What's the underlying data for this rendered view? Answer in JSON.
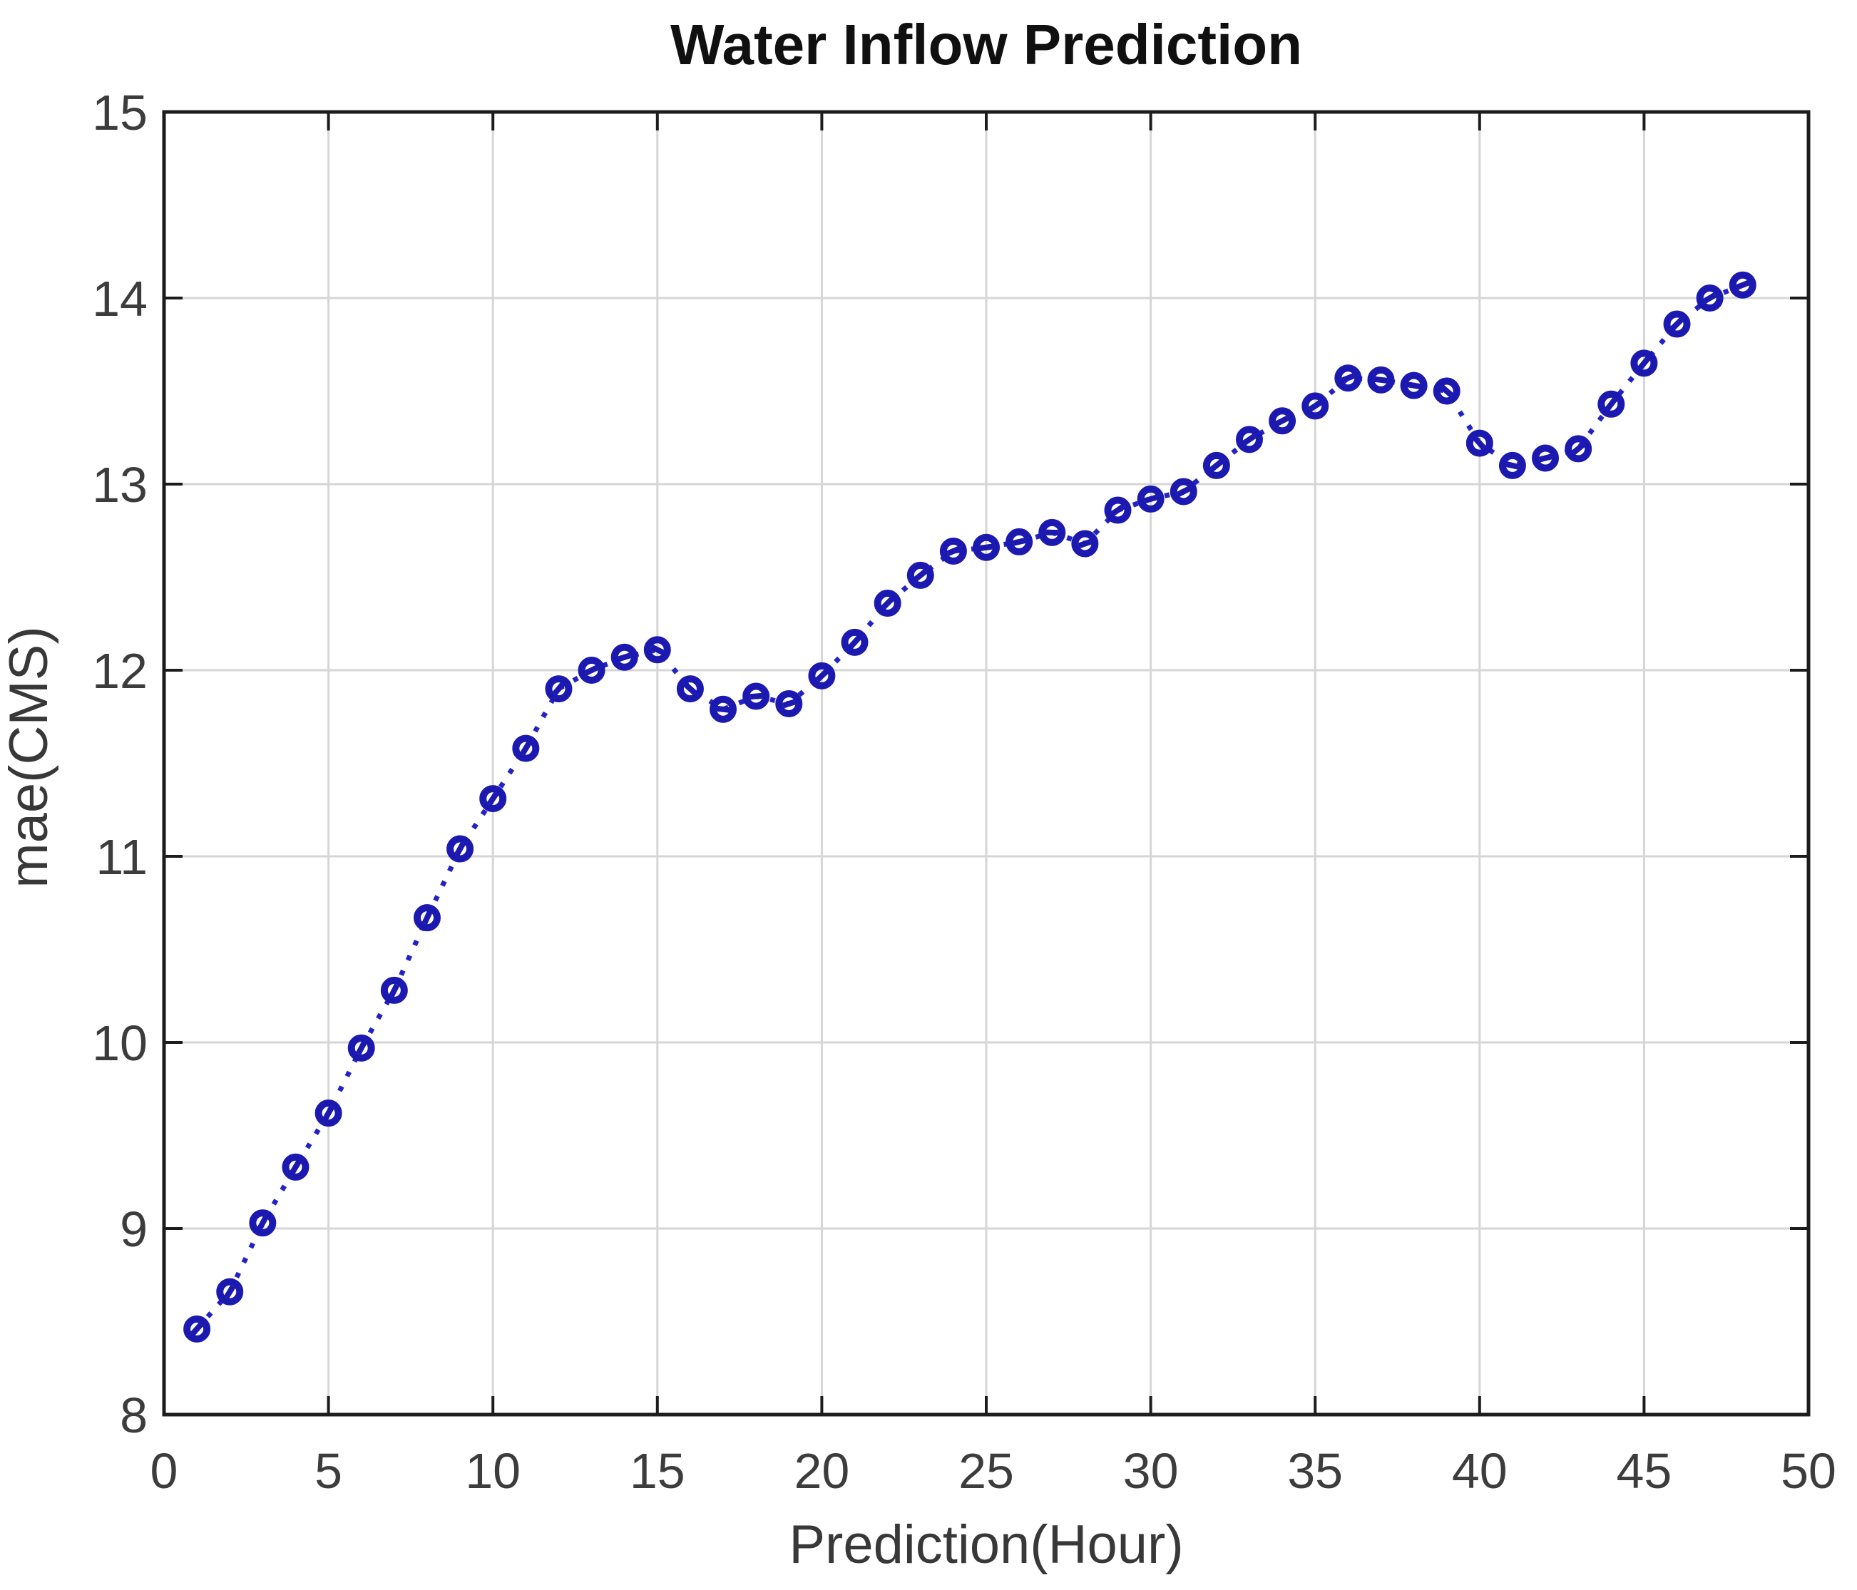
{
  "chart_data": {
    "type": "scatter",
    "title": "Water Inflow Prediction",
    "xlabel": "Prediction(Hour)",
    "ylabel": "mae(CMS)",
    "xlim": [
      0,
      50
    ],
    "ylim": [
      8,
      15
    ],
    "xticks": [
      0,
      5,
      10,
      15,
      20,
      25,
      30,
      35,
      40,
      45,
      50
    ],
    "yticks": [
      8,
      9,
      10,
      11,
      12,
      13,
      14,
      15
    ],
    "grid": true,
    "legend_position": "none",
    "marker": "open-circle",
    "line_style": "dotted",
    "series": [
      {
        "name": "mae",
        "x": [
          1,
          2,
          3,
          4,
          5,
          6,
          7,
          8,
          9,
          10,
          11,
          12,
          13,
          14,
          15,
          16,
          17,
          18,
          19,
          20,
          21,
          22,
          23,
          24,
          25,
          26,
          27,
          28,
          29,
          30,
          31,
          32,
          33,
          34,
          35,
          36,
          37,
          38,
          39,
          40,
          41,
          42,
          43,
          44,
          45,
          46,
          47,
          48
        ],
        "y": [
          8.46,
          8.66,
          9.03,
          9.33,
          9.62,
          9.97,
          10.28,
          10.67,
          11.04,
          11.31,
          11.58,
          11.9,
          12.0,
          12.07,
          12.11,
          11.9,
          11.79,
          11.86,
          11.82,
          11.97,
          12.15,
          12.36,
          12.51,
          12.64,
          12.66,
          12.69,
          12.74,
          12.68,
          12.86,
          12.92,
          12.96,
          13.1,
          13.24,
          13.34,
          13.42,
          13.57,
          13.56,
          13.53,
          13.5,
          13.22,
          13.1,
          13.14,
          13.19,
          13.43,
          13.65,
          13.86,
          14.0,
          14.07
        ]
      }
    ],
    "colors": {
      "marker": "#1b19b0",
      "line": "#2323c4",
      "grid": "#d6d6d6",
      "axis": "#1c1c1c",
      "tick_text": "#3c3c3c",
      "title_text": "#101010",
      "background": "#ffffff"
    }
  }
}
